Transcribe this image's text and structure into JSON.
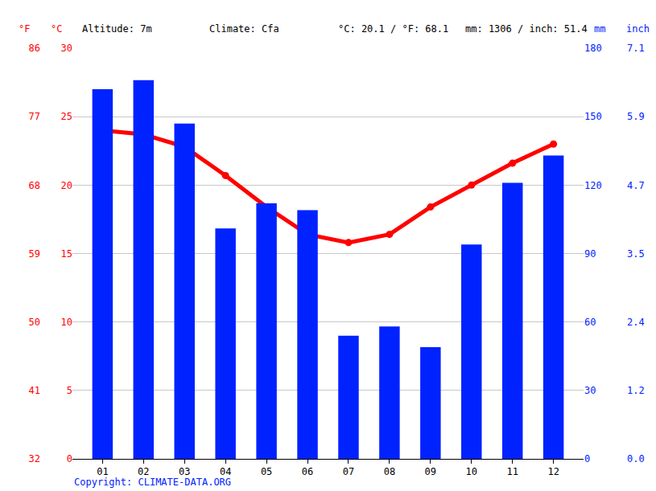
{
  "chart_data": {
    "type": "bar",
    "categories": [
      "01",
      "02",
      "03",
      "04",
      "05",
      "06",
      "07",
      "08",
      "09",
      "10",
      "11",
      "12"
    ],
    "series": [
      {
        "type": "bar",
        "color": "#0022ff",
        "axis": "y2",
        "values": [
          162,
          166,
          147,
          101,
          112,
          109,
          54,
          58,
          49,
          94,
          121,
          133
        ]
      },
      {
        "type": "line",
        "color": "#ff0000",
        "marker": "circle",
        "axis": "y",
        "values": [
          24.0,
          23.7,
          22.8,
          20.7,
          18.4,
          16.4,
          15.8,
          16.4,
          18.4,
          20.0,
          21.6,
          23.0
        ]
      }
    ],
    "ylim": [
      0,
      30
    ],
    "yticks": [
      0,
      5,
      10,
      15,
      20,
      25,
      30
    ],
    "y2lim": [
      0,
      180
    ],
    "y2ticks": [
      0,
      30,
      60,
      90,
      120,
      150,
      180
    ],
    "y3lim": [
      32,
      86
    ],
    "y3ticks": [
      32,
      41,
      50,
      59,
      68,
      77,
      86
    ],
    "y4lim": [
      0,
      7.087
    ],
    "y4ticks": [
      {
        "value": 0,
        "label": "0.0"
      },
      {
        "value": 1.181,
        "label": "1.2"
      },
      {
        "value": 2.362,
        "label": "2.4"
      },
      {
        "value": 3.543,
        "label": "3.5"
      },
      {
        "value": 4.724,
        "label": "4.7"
      },
      {
        "value": 5.906,
        "label": "5.9"
      },
      {
        "value": 7.087,
        "label": "7.1"
      }
    ],
    "axis_labels": {
      "y3": "°F",
      "y": "°C",
      "y2": "mm",
      "y4": "inch"
    },
    "annotations": [
      "Altitude: 7m",
      "Climate: Cfa",
      "°C: 20.1 / °F: 68.1",
      "mm: 1306 / inch: 51.4"
    ],
    "footer": "Copyright: CLIMATE-DATA.ORG",
    "grid": true
  }
}
